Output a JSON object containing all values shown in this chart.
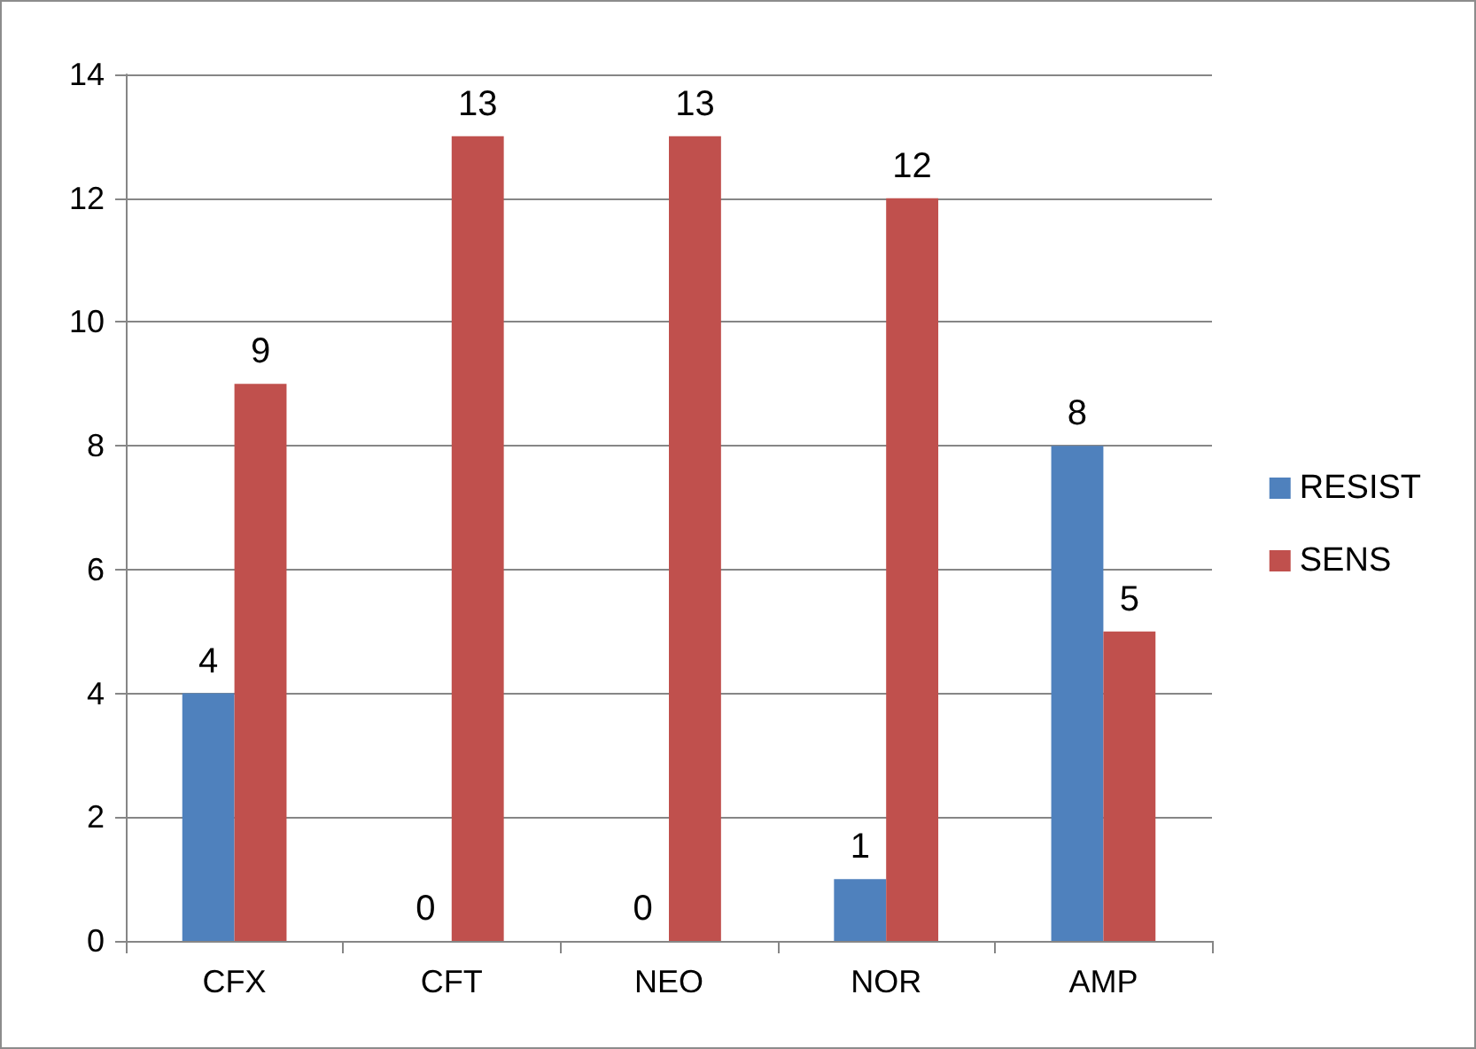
{
  "chart_data": {
    "type": "bar",
    "categories": [
      "CFX",
      "CFT",
      "NEO",
      "NOR",
      "AMP"
    ],
    "series": [
      {
        "name": "RESIST",
        "color": "#4f81bd",
        "values": [
          4,
          0,
          0,
          1,
          8
        ]
      },
      {
        "name": "SENS",
        "color": "#c0504d",
        "values": [
          9,
          13,
          13,
          12,
          5
        ]
      }
    ],
    "ylim": [
      0,
      14
    ],
    "yticks": [
      0,
      2,
      4,
      6,
      8,
      10,
      12,
      14
    ],
    "grid": "y",
    "legend": "right",
    "data_labels": true
  }
}
